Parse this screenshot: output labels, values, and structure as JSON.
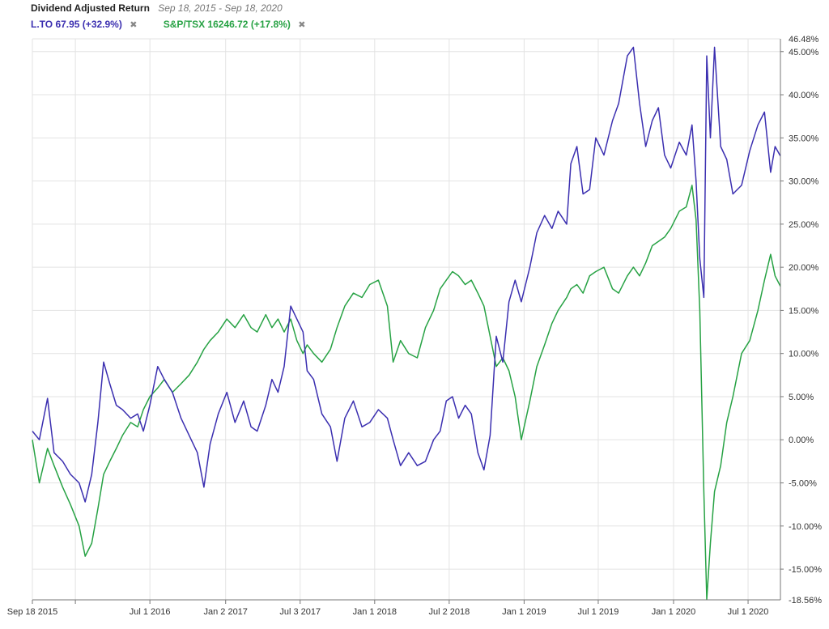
{
  "header": {
    "title": "Dividend Adjusted Return",
    "date_range": "Sep 18, 2015 - Sep 18, 2020",
    "close_glyph": "✖"
  },
  "legend": [
    {
      "label": "L.TO 67.95 (+32.9%)",
      "color": "#3b2fb0"
    },
    {
      "label": "S&P/TSX 16246.72 (+17.8%)",
      "color": "#27a244"
    }
  ],
  "chart_data": {
    "type": "line",
    "title": "Dividend Adjusted Return",
    "subtitle": "Sep 18, 2015 - Sep 18, 2020",
    "xlabel": "",
    "ylabel": "",
    "x_range": [
      "2015-09-18",
      "2020-09-18"
    ],
    "ylim": [
      -18.56,
      46.48
    ],
    "y_ticks": [
      45,
      40,
      35,
      30,
      25,
      20,
      15,
      10,
      5,
      0,
      -5,
      -10,
      -15
    ],
    "y_tick_labels": [
      "45.00%",
      "40.00%",
      "35.00%",
      "30.00%",
      "25.00%",
      "20.00%",
      "15.00%",
      "10.00%",
      "5.00%",
      "0.00%",
      "-5.00%",
      "-10.00%",
      "-15.00%"
    ],
    "y_bound_labels": {
      "max": "46.48%",
      "min": "-18.56%"
    },
    "x_ticks": [
      {
        "label": "Sep 18 2015",
        "date": "2015-09-18"
      },
      {
        "label": "Jul 1 2016",
        "date": "2016-07-01"
      },
      {
        "label": "Jan 2 2017",
        "date": "2017-01-02"
      },
      {
        "label": "Jul 3 2017",
        "date": "2017-07-03"
      },
      {
        "label": "Jan 1 2018",
        "date": "2018-01-01"
      },
      {
        "label": "Jul 2 2018",
        "date": "2018-07-02"
      },
      {
        "label": "Jan 1 2019",
        "date": "2019-01-01"
      },
      {
        "label": "Jul 1 2019",
        "date": "2019-07-01"
      },
      {
        "label": "Jan 1 2020",
        "date": "2020-01-01"
      },
      {
        "label": "Jul 1 2020",
        "date": "2020-07-01"
      }
    ],
    "extra_gridlines": [
      "2016-01-01"
    ],
    "grid": true,
    "legend_position": "top-left",
    "series": [
      {
        "name": "L.TO 67.95 (+32.9%)",
        "color": "#3b2fb0",
        "points": [
          [
            "2015-09-18",
            1.0
          ],
          [
            "2015-10-05",
            0.0
          ],
          [
            "2015-10-25",
            4.8
          ],
          [
            "2015-11-10",
            -1.5
          ],
          [
            "2015-12-01",
            -2.5
          ],
          [
            "2015-12-20",
            -4.0
          ],
          [
            "2016-01-10",
            -5.0
          ],
          [
            "2016-01-25",
            -7.2
          ],
          [
            "2016-02-10",
            -4.0
          ],
          [
            "2016-02-25",
            2.0
          ],
          [
            "2016-03-10",
            9.0
          ],
          [
            "2016-03-25",
            6.5
          ],
          [
            "2016-04-10",
            4.0
          ],
          [
            "2016-04-25",
            3.5
          ],
          [
            "2016-05-15",
            2.5
          ],
          [
            "2016-06-01",
            3.0
          ],
          [
            "2016-06-15",
            1.0
          ],
          [
            "2016-07-01",
            4.0
          ],
          [
            "2016-07-20",
            8.5
          ],
          [
            "2016-08-05",
            7.0
          ],
          [
            "2016-08-25",
            5.5
          ],
          [
            "2016-09-15",
            2.5
          ],
          [
            "2016-10-05",
            0.5
          ],
          [
            "2016-10-25",
            -1.5
          ],
          [
            "2016-11-10",
            -5.5
          ],
          [
            "2016-11-25",
            -0.5
          ],
          [
            "2016-12-15",
            3.0
          ],
          [
            "2017-01-05",
            5.5
          ],
          [
            "2017-01-25",
            2.0
          ],
          [
            "2017-02-15",
            4.5
          ],
          [
            "2017-03-05",
            1.5
          ],
          [
            "2017-03-20",
            1.0
          ],
          [
            "2017-04-10",
            4.0
          ],
          [
            "2017-04-25",
            7.0
          ],
          [
            "2017-05-10",
            5.5
          ],
          [
            "2017-05-25",
            8.5
          ],
          [
            "2017-06-10",
            15.5
          ],
          [
            "2017-06-25",
            14.0
          ],
          [
            "2017-07-10",
            12.5
          ],
          [
            "2017-07-20",
            8.0
          ],
          [
            "2017-08-05",
            7.0
          ],
          [
            "2017-08-25",
            3.0
          ],
          [
            "2017-09-15",
            1.5
          ],
          [
            "2017-10-01",
            -2.5
          ],
          [
            "2017-10-20",
            2.5
          ],
          [
            "2017-11-10",
            4.5
          ],
          [
            "2017-12-01",
            1.5
          ],
          [
            "2017-12-20",
            2.0
          ],
          [
            "2018-01-10",
            3.5
          ],
          [
            "2018-02-01",
            2.5
          ],
          [
            "2018-02-15",
            0.0
          ],
          [
            "2018-03-05",
            -3.0
          ],
          [
            "2018-03-25",
            -1.5
          ],
          [
            "2018-04-15",
            -3.0
          ],
          [
            "2018-05-05",
            -2.5
          ],
          [
            "2018-05-25",
            0.0
          ],
          [
            "2018-06-10",
            1.0
          ],
          [
            "2018-06-25",
            4.5
          ],
          [
            "2018-07-10",
            5.0
          ],
          [
            "2018-07-25",
            2.5
          ],
          [
            "2018-08-10",
            4.0
          ],
          [
            "2018-08-25",
            3.0
          ],
          [
            "2018-09-10",
            -1.5
          ],
          [
            "2018-09-25",
            -3.5
          ],
          [
            "2018-10-10",
            0.5
          ],
          [
            "2018-10-25",
            12.0
          ],
          [
            "2018-11-10",
            9.0
          ],
          [
            "2018-11-25",
            16.0
          ],
          [
            "2018-12-10",
            18.5
          ],
          [
            "2018-12-25",
            16.0
          ],
          [
            "2019-01-15",
            20.0
          ],
          [
            "2019-02-01",
            24.0
          ],
          [
            "2019-02-20",
            26.0
          ],
          [
            "2019-03-10",
            24.5
          ],
          [
            "2019-03-25",
            26.5
          ],
          [
            "2019-04-15",
            25.0
          ],
          [
            "2019-04-25",
            32.0
          ],
          [
            "2019-05-10",
            34.0
          ],
          [
            "2019-05-25",
            28.5
          ],
          [
            "2019-06-10",
            29.0
          ],
          [
            "2019-06-25",
            35.0
          ],
          [
            "2019-07-15",
            33.0
          ],
          [
            "2019-08-05",
            37.0
          ],
          [
            "2019-08-20",
            39.0
          ],
          [
            "2019-09-10",
            44.5
          ],
          [
            "2019-09-25",
            45.5
          ],
          [
            "2019-10-10",
            39.0
          ],
          [
            "2019-10-25",
            34.0
          ],
          [
            "2019-11-10",
            37.0
          ],
          [
            "2019-11-25",
            38.5
          ],
          [
            "2019-12-10",
            33.0
          ],
          [
            "2019-12-25",
            31.5
          ],
          [
            "2020-01-15",
            34.5
          ],
          [
            "2020-02-01",
            33.0
          ],
          [
            "2020-02-15",
            36.5
          ],
          [
            "2020-02-25",
            30.0
          ],
          [
            "2020-03-05",
            21.0
          ],
          [
            "2020-03-15",
            16.5
          ],
          [
            "2020-03-22",
            44.5
          ],
          [
            "2020-03-31",
            35.0
          ],
          [
            "2020-04-10",
            45.5
          ],
          [
            "2020-04-25",
            34.0
          ],
          [
            "2020-05-10",
            32.5
          ],
          [
            "2020-05-25",
            28.5
          ],
          [
            "2020-06-15",
            29.5
          ],
          [
            "2020-07-05",
            33.5
          ],
          [
            "2020-07-25",
            36.5
          ],
          [
            "2020-08-10",
            38.0
          ],
          [
            "2020-08-25",
            31.0
          ],
          [
            "2020-09-05",
            34.0
          ],
          [
            "2020-09-18",
            32.9
          ]
        ]
      },
      {
        "name": "S&P/TSX 16246.72 (+17.8%)",
        "color": "#27a244",
        "points": [
          [
            "2015-09-18",
            0.0
          ],
          [
            "2015-10-05",
            -5.0
          ],
          [
            "2015-10-25",
            -1.0
          ],
          [
            "2015-11-10",
            -3.0
          ],
          [
            "2015-12-01",
            -5.5
          ],
          [
            "2015-12-20",
            -7.5
          ],
          [
            "2016-01-10",
            -10.0
          ],
          [
            "2016-01-25",
            -13.5
          ],
          [
            "2016-02-10",
            -12.0
          ],
          [
            "2016-02-25",
            -8.0
          ],
          [
            "2016-03-10",
            -4.0
          ],
          [
            "2016-03-25",
            -2.5
          ],
          [
            "2016-04-10",
            -1.0
          ],
          [
            "2016-04-25",
            0.5
          ],
          [
            "2016-05-15",
            2.0
          ],
          [
            "2016-06-01",
            1.5
          ],
          [
            "2016-06-15",
            3.5
          ],
          [
            "2016-07-01",
            5.0
          ],
          [
            "2016-07-20",
            6.0
          ],
          [
            "2016-08-05",
            7.0
          ],
          [
            "2016-08-25",
            5.5
          ],
          [
            "2016-09-15",
            6.5
          ],
          [
            "2016-10-05",
            7.5
          ],
          [
            "2016-10-25",
            9.0
          ],
          [
            "2016-11-10",
            10.5
          ],
          [
            "2016-11-25",
            11.5
          ],
          [
            "2016-12-15",
            12.5
          ],
          [
            "2017-01-05",
            14.0
          ],
          [
            "2017-01-25",
            13.0
          ],
          [
            "2017-02-15",
            14.5
          ],
          [
            "2017-03-05",
            13.0
          ],
          [
            "2017-03-20",
            12.5
          ],
          [
            "2017-04-10",
            14.5
          ],
          [
            "2017-04-25",
            13.0
          ],
          [
            "2017-05-10",
            14.0
          ],
          [
            "2017-05-25",
            12.5
          ],
          [
            "2017-06-10",
            14.0
          ],
          [
            "2017-06-25",
            11.5
          ],
          [
            "2017-07-10",
            10.0
          ],
          [
            "2017-07-20",
            11.0
          ],
          [
            "2017-08-05",
            10.0
          ],
          [
            "2017-08-25",
            9.0
          ],
          [
            "2017-09-15",
            10.5
          ],
          [
            "2017-10-01",
            13.0
          ],
          [
            "2017-10-20",
            15.5
          ],
          [
            "2017-11-10",
            17.0
          ],
          [
            "2017-12-01",
            16.5
          ],
          [
            "2017-12-20",
            18.0
          ],
          [
            "2018-01-10",
            18.5
          ],
          [
            "2018-02-01",
            15.5
          ],
          [
            "2018-02-15",
            9.0
          ],
          [
            "2018-03-05",
            11.5
          ],
          [
            "2018-03-25",
            10.0
          ],
          [
            "2018-04-15",
            9.5
          ],
          [
            "2018-05-05",
            13.0
          ],
          [
            "2018-05-25",
            15.0
          ],
          [
            "2018-06-10",
            17.5
          ],
          [
            "2018-06-25",
            18.5
          ],
          [
            "2018-07-10",
            19.5
          ],
          [
            "2018-07-25",
            19.0
          ],
          [
            "2018-08-10",
            18.0
          ],
          [
            "2018-08-25",
            18.5
          ],
          [
            "2018-09-10",
            17.0
          ],
          [
            "2018-09-25",
            15.5
          ],
          [
            "2018-10-10",
            12.0
          ],
          [
            "2018-10-25",
            8.5
          ],
          [
            "2018-11-10",
            9.5
          ],
          [
            "2018-11-25",
            8.0
          ],
          [
            "2018-12-10",
            5.0
          ],
          [
            "2018-12-25",
            0.0
          ],
          [
            "2019-01-15",
            4.5
          ],
          [
            "2019-02-01",
            8.5
          ],
          [
            "2019-02-20",
            11.0
          ],
          [
            "2019-03-10",
            13.5
          ],
          [
            "2019-03-25",
            15.0
          ],
          [
            "2019-04-15",
            16.5
          ],
          [
            "2019-04-25",
            17.5
          ],
          [
            "2019-05-10",
            18.0
          ],
          [
            "2019-05-25",
            17.0
          ],
          [
            "2019-06-10",
            19.0
          ],
          [
            "2019-06-25",
            19.5
          ],
          [
            "2019-07-15",
            20.0
          ],
          [
            "2019-08-05",
            17.5
          ],
          [
            "2019-08-20",
            17.0
          ],
          [
            "2019-09-10",
            19.0
          ],
          [
            "2019-09-25",
            20.0
          ],
          [
            "2019-10-10",
            19.0
          ],
          [
            "2019-10-25",
            20.5
          ],
          [
            "2019-11-10",
            22.5
          ],
          [
            "2019-11-25",
            23.0
          ],
          [
            "2019-12-10",
            23.5
          ],
          [
            "2019-12-25",
            24.5
          ],
          [
            "2020-01-15",
            26.5
          ],
          [
            "2020-02-01",
            27.0
          ],
          [
            "2020-02-15",
            29.5
          ],
          [
            "2020-02-25",
            25.5
          ],
          [
            "2020-03-05",
            15.0
          ],
          [
            "2020-03-15",
            -6.0
          ],
          [
            "2020-03-22",
            -18.5
          ],
          [
            "2020-03-31",
            -12.0
          ],
          [
            "2020-04-10",
            -6.0
          ],
          [
            "2020-04-25",
            -3.0
          ],
          [
            "2020-05-10",
            2.0
          ],
          [
            "2020-05-25",
            5.0
          ],
          [
            "2020-06-15",
            10.0
          ],
          [
            "2020-07-05",
            11.5
          ],
          [
            "2020-07-25",
            15.0
          ],
          [
            "2020-08-10",
            18.5
          ],
          [
            "2020-08-25",
            21.5
          ],
          [
            "2020-09-05",
            19.0
          ],
          [
            "2020-09-18",
            17.8
          ]
        ]
      }
    ]
  }
}
